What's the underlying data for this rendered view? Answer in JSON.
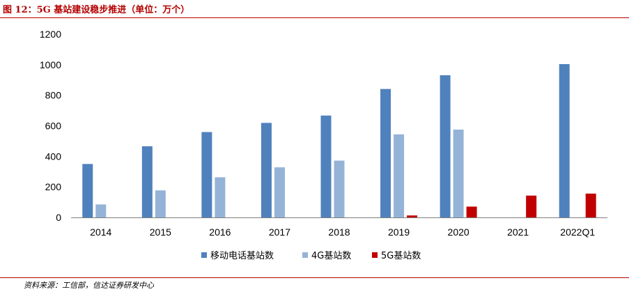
{
  "figure": {
    "title": "图 12：5G 基站建设稳步推进（单位：万个）",
    "source": "资料来源：工信部，信达证券研发中心"
  },
  "colors": {
    "series_mobile": "#4f81bd",
    "series_4g": "#95b3d7",
    "series_5g": "#c00000",
    "rule": "#b40000"
  },
  "chart_data": {
    "type": "bar",
    "title": "5G 基站建设稳步推进（单位：万个）",
    "xlabel": "",
    "ylabel": "",
    "categories": [
      "2014",
      "2015",
      "2016",
      "2017",
      "2018",
      "2019",
      "2020",
      "2021",
      "2022Q1"
    ],
    "ylim": [
      0,
      1200
    ],
    "yticks": [
      0,
      200,
      400,
      600,
      800,
      1000,
      1200
    ],
    "grid": false,
    "legend_position": "bottom",
    "series": [
      {
        "name": "移动电话基站数",
        "values": [
          350,
          466,
          559,
          619,
          667,
          841,
          931,
          null,
          1004
        ]
      },
      {
        "name": "4G基站数",
        "values": [
          85,
          177,
          263,
          328,
          372,
          544,
          575,
          null,
          null
        ]
      },
      {
        "name": "5G基站数",
        "values": [
          null,
          null,
          null,
          null,
          null,
          13,
          71,
          143,
          156
        ]
      }
    ]
  }
}
